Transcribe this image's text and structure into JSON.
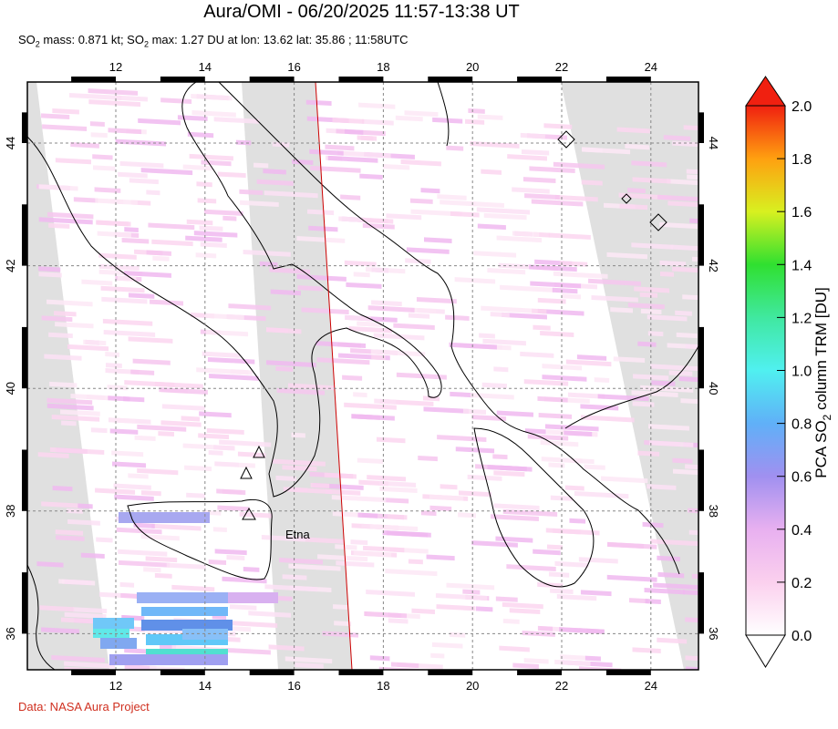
{
  "title": "Aura/OMI - 06/20/2025 11:57-13:38 UT",
  "subtitle": {
    "mass_prefix": "SO",
    "mass_sub": "2",
    "mass_rest": " mass: 0.871 kt; SO",
    "max_sub": "2",
    "max_rest": " max: 1.27 DU at lon: 13.62 lat: 35.86 ; 11:58UTC"
  },
  "credit": "Data: NASA Aura Project",
  "map": {
    "lon_ticks": [
      "12",
      "14",
      "16",
      "18",
      "20",
      "22",
      "24"
    ],
    "lat_ticks": [
      "44",
      "42",
      "40",
      "38",
      "36"
    ],
    "volcano_label": "Etna",
    "colors": {
      "land_outline": "#000000",
      "nodata": "#e0e0e0",
      "orbit_line": "#cc0000",
      "grid": "#888888"
    }
  },
  "colorbar": {
    "label_pre": "PCA SO",
    "label_sub": "2",
    "label_post": " column TRM [DU]",
    "ticks": [
      "2.0",
      "1.8",
      "1.6",
      "1.4",
      "1.2",
      "1.0",
      "0.8",
      "0.6",
      "0.4",
      "0.2",
      "0.0"
    ]
  }
}
